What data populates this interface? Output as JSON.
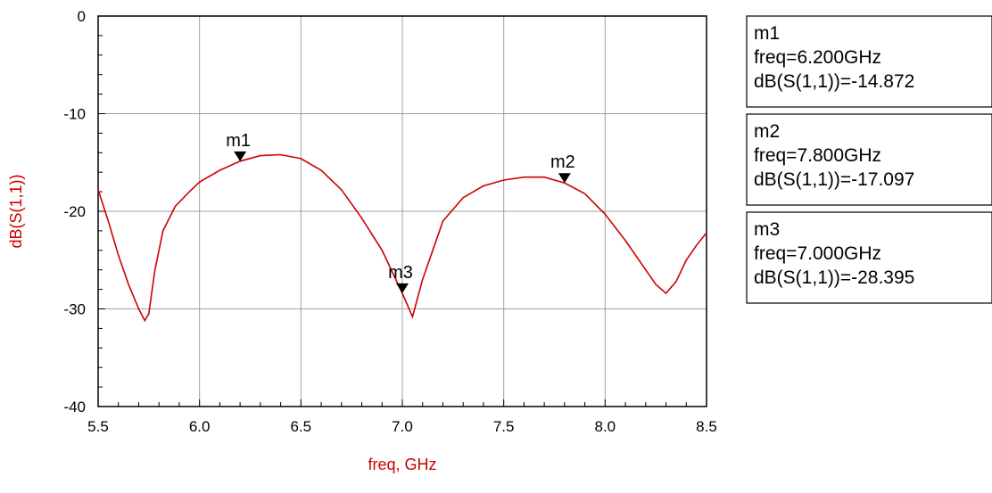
{
  "colors": {
    "trace": "#cc0000",
    "axis_label": "#cc0000",
    "grid": "#a0a0a0",
    "frame": "#000000",
    "marker": "#000000"
  },
  "chart_data": {
    "type": "line",
    "xlabel": "freq, GHz",
    "ylabel": "dB(S(1,1))",
    "xlim": [
      5.5,
      8.5
    ],
    "ylim": [
      -40,
      0
    ],
    "grid": true,
    "x_ticks": [
      "5.5",
      "6.0",
      "6.5",
      "7.0",
      "7.5",
      "8.0",
      "8.5"
    ],
    "y_ticks": [
      "0",
      "-10",
      "-20",
      "-30",
      "-40"
    ],
    "series": [
      {
        "x": [
          5.5,
          5.55,
          5.6,
          5.65,
          5.7,
          5.73,
          5.75,
          5.78,
          5.82,
          5.88,
          5.95,
          6.0,
          6.1,
          6.2,
          6.3,
          6.4,
          6.5,
          6.6,
          6.7,
          6.8,
          6.9,
          7.0,
          7.05,
          7.1,
          7.15,
          7.2,
          7.3,
          7.4,
          7.5,
          7.6,
          7.7,
          7.8,
          7.9,
          8.0,
          8.1,
          8.2,
          8.25,
          8.3,
          8.35,
          8.4,
          8.45,
          8.5
        ],
        "y": [
          -17.8,
          -21.0,
          -24.5,
          -27.5,
          -30.0,
          -31.2,
          -30.5,
          -26.0,
          -22.0,
          -19.5,
          -18.0,
          -17.0,
          -15.8,
          -14.87,
          -14.3,
          -14.2,
          -14.6,
          -15.8,
          -17.8,
          -20.7,
          -24.0,
          -28.4,
          -30.8,
          -27.0,
          -24.0,
          -21.0,
          -18.6,
          -17.4,
          -16.8,
          -16.5,
          -16.5,
          -17.1,
          -18.2,
          -20.3,
          -23.0,
          -26.0,
          -27.5,
          -28.4,
          -27.2,
          -25.0,
          -23.5,
          -22.2
        ]
      }
    ],
    "markers": [
      {
        "name": "m1",
        "x": 6.2,
        "y": -14.872,
        "freq_text": "freq=6.200GHz",
        "value_text": "dB(S(1,1))=-14.872"
      },
      {
        "name": "m2",
        "x": 7.8,
        "y": -17.097,
        "freq_text": "freq=7.800GHz",
        "value_text": "dB(S(1,1))=-17.097"
      },
      {
        "name": "m3",
        "x": 7.0,
        "y": -28.395,
        "freq_text": "freq=7.000GHz",
        "value_text": "dB(S(1,1))=-28.395"
      }
    ]
  }
}
